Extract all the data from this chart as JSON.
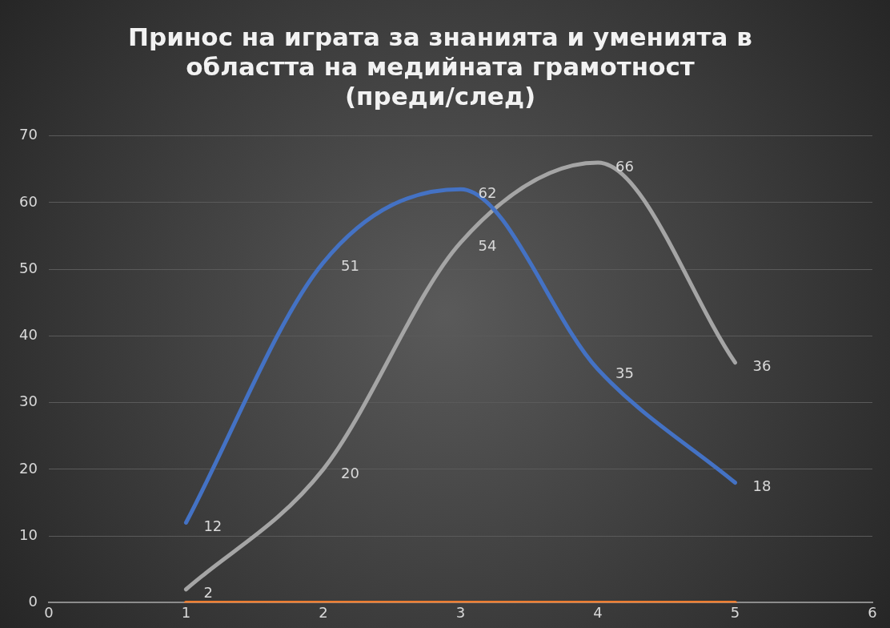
{
  "chart_data": {
    "type": "line",
    "title": "Принос на играта за знанията и уменията в областта на медийната грамотност (преди/след)",
    "x": [
      1,
      2,
      3,
      4,
      5
    ],
    "series": [
      {
        "color": "#4472c4",
        "values": [
          12,
          51,
          62,
          35,
          18
        ],
        "value_labels": [
          "12",
          "51",
          "62",
          "35",
          "18"
        ]
      },
      {
        "color": "#a5a5a5",
        "values": [
          2,
          20,
          54,
          66,
          36
        ],
        "value_labels": [
          "2",
          "20",
          "54",
          "66",
          "36"
        ]
      },
      {
        "color": "#ed7d31",
        "values": [
          0,
          0,
          0,
          0,
          0
        ]
      }
    ],
    "xlim": [
      0,
      6
    ],
    "xticks": [
      0,
      1,
      2,
      3,
      4,
      5,
      6
    ],
    "ylim": [
      0,
      70
    ],
    "yticks": [
      0,
      10,
      20,
      30,
      40,
      50,
      60,
      70
    ],
    "grid": "y",
    "legend": false,
    "marker": "none",
    "line_style": "solid"
  }
}
